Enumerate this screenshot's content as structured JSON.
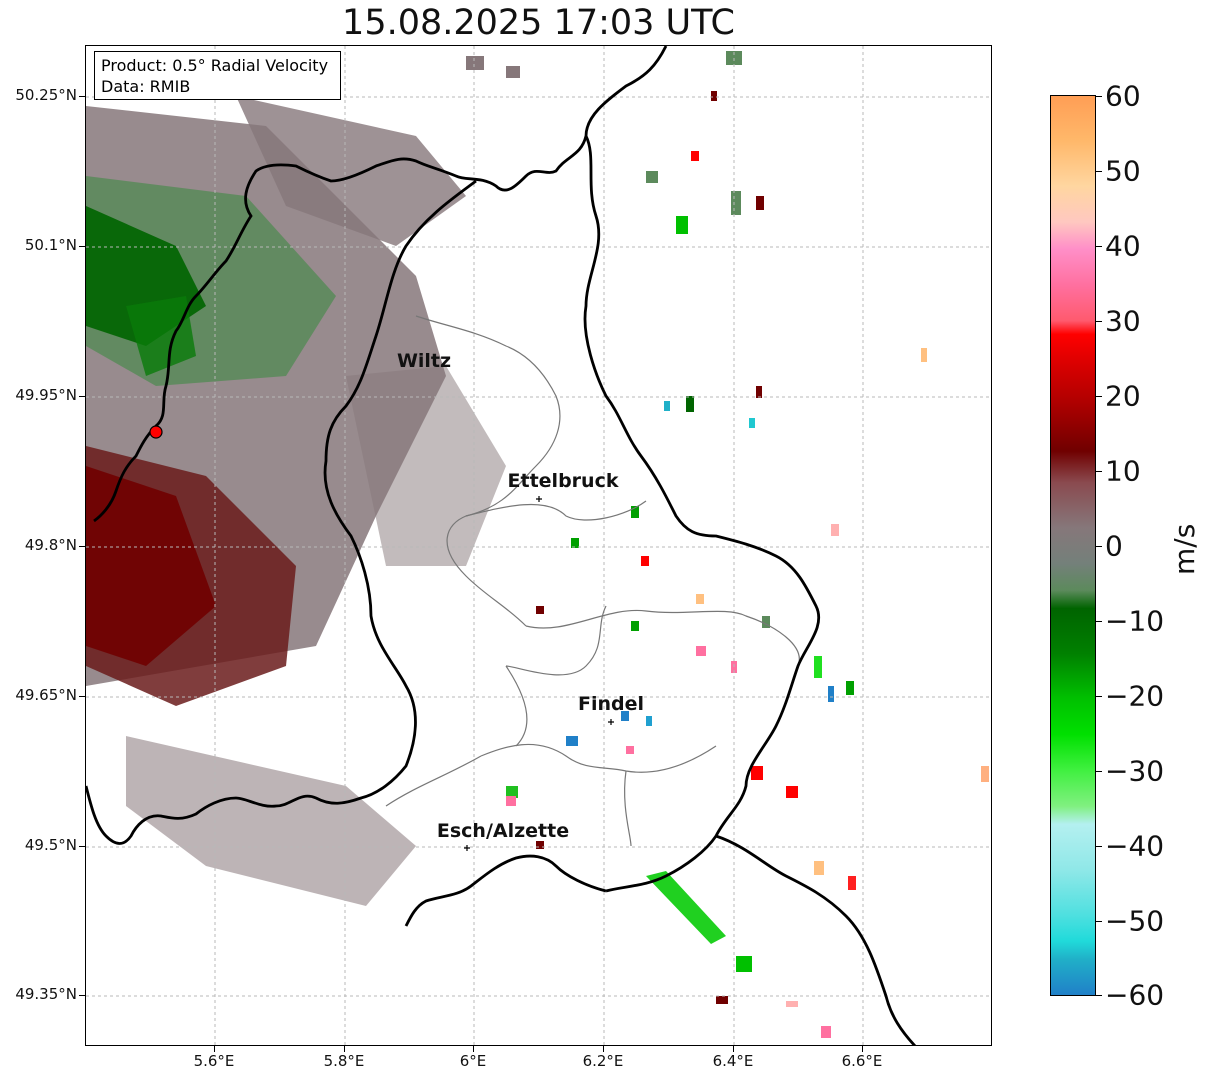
{
  "title": "15.08.2025 17:03 UTC",
  "info_box": {
    "product_line": "Product: 0.5° Radial Velocity",
    "data_line": "Data: RMIB"
  },
  "map": {
    "lat_ticks": [
      "50.25°N",
      "50.1°N",
      "49.95°N",
      "49.8°N",
      "49.65°N",
      "49.5°N",
      "49.35°N"
    ],
    "lon_ticks": [
      "5.6°E",
      "5.8°E",
      "6°E",
      "6.2°E",
      "6.4°E",
      "6.6°E"
    ],
    "cities": [
      {
        "name": "Wiltz"
      },
      {
        "name": "Ettelbruck"
      },
      {
        "name": "Findel"
      },
      {
        "name": "Esch/Alzette"
      }
    ]
  },
  "colorbar": {
    "unit": "m/s",
    "tick_labels": [
      "60",
      "50",
      "40",
      "30",
      "20",
      "10",
      "0",
      "−10",
      "−20",
      "−30",
      "−40",
      "−50",
      "−60"
    ],
    "colors": {
      "top_orange": "#ff9e55",
      "peach": "#ffd6a0",
      "pink": "#ff8fc8",
      "rose": "#ff5a6e",
      "red": "#ff0000",
      "dark_red": "#700000",
      "zero_taupe": "#86777a",
      "zero_green": "#5c8a5c",
      "dark_green": "#006400",
      "bright_green": "#00e000",
      "light_green": "#80f080",
      "light_cyan": "#b4f0f0",
      "cyan": "#20dada",
      "blue": "#2080c8"
    }
  }
}
